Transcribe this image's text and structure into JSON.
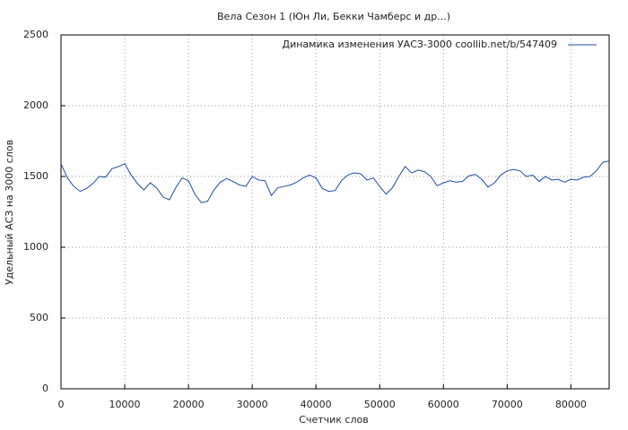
{
  "chart_data": {
    "type": "line",
    "title": "Вела Сезон 1 (Юн Ли, Бекки Чамберс и др...)",
    "x_label": "Счетчик слов",
    "y_label": "Удельный АСЗ на 3000 слов",
    "xlim": [
      0,
      86000
    ],
    "ylim": [
      0,
      2500
    ],
    "xticks": [
      0,
      10000,
      20000,
      30000,
      40000,
      50000,
      60000,
      70000,
      80000
    ],
    "yticks": [
      0,
      500,
      1000,
      1500,
      2000,
      2500
    ],
    "grid": true,
    "legend": "upper-right",
    "x": [
      0,
      1000,
      2000,
      3000,
      4000,
      5000,
      6000,
      7000,
      8000,
      9000,
      10000,
      11000,
      12000,
      13000,
      14000,
      15000,
      16000,
      17000,
      18000,
      19000,
      20000,
      21000,
      22000,
      23000,
      24000,
      25000,
      26000,
      27000,
      28000,
      29000,
      30000,
      31000,
      32000,
      33000,
      34000,
      35000,
      36000,
      37000,
      38000,
      39000,
      40000,
      41000,
      42000,
      43000,
      44000,
      45000,
      46000,
      47000,
      48000,
      49000,
      50000,
      51000,
      52000,
      53000,
      54000,
      55000,
      56000,
      57000,
      58000,
      59000,
      60000,
      61000,
      62000,
      63000,
      64000,
      65000,
      66000,
      67000,
      68000,
      69000,
      70000,
      71000,
      72000,
      73000,
      74000,
      75000,
      76000,
      77000,
      78000,
      79000,
      80000,
      81000,
      82000,
      83000,
      84000,
      85000,
      86000
    ],
    "series": [
      {
        "name": "Динамика изменения УАСЗ-3000  coollib.net/b/547409",
        "color": "#1f4e9c",
        "values": [
          1590,
          1490,
          1430,
          1395,
          1415,
          1450,
          1500,
          1495,
          1555,
          1570,
          1590,
          1510,
          1450,
          1405,
          1455,
          1420,
          1355,
          1335,
          1420,
          1490,
          1470,
          1375,
          1315,
          1325,
          1405,
          1460,
          1485,
          1465,
          1440,
          1430,
          1500,
          1475,
          1470,
          1365,
          1420,
          1430,
          1440,
          1460,
          1490,
          1510,
          1490,
          1415,
          1395,
          1400,
          1470,
          1510,
          1525,
          1520,
          1475,
          1490,
          1430,
          1375,
          1420,
          1500,
          1570,
          1525,
          1545,
          1535,
          1500,
          1435,
          1455,
          1470,
          1460,
          1465,
          1505,
          1515,
          1480,
          1425,
          1455,
          1510,
          1540,
          1550,
          1540,
          1500,
          1510,
          1465,
          1500,
          1475,
          1480,
          1460,
          1480,
          1475,
          1495,
          1500,
          1540,
          1600,
          1610
        ]
      }
    ]
  }
}
